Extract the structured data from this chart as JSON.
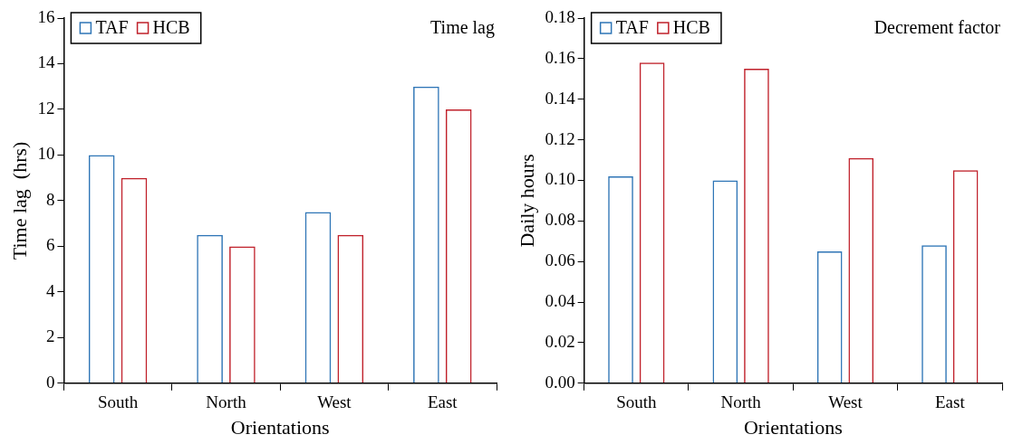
{
  "chart_data": [
    {
      "type": "bar",
      "title": "Time lag",
      "xlabel": "Orientations",
      "ylabel": "Time lag  (hrs)",
      "categories": [
        "South",
        "North",
        "West",
        "East"
      ],
      "series": [
        {
          "name": "TAF",
          "color": "#2e75b6",
          "values": [
            10,
            6.5,
            7.5,
            13
          ]
        },
        {
          "name": "HCB",
          "color": "#c0202a",
          "values": [
            9,
            6,
            6.5,
            12
          ]
        }
      ],
      "ylim": [
        0,
        16
      ],
      "yticks": [
        0,
        2,
        4,
        6,
        8,
        10,
        12,
        14,
        16
      ],
      "grid": false,
      "legend": "top left"
    },
    {
      "type": "bar",
      "title": "Decrement factor",
      "xlabel": "Orientations",
      "ylabel": "Daily hours",
      "categories": [
        "South",
        "North",
        "West",
        "East"
      ],
      "series": [
        {
          "name": "TAF",
          "color": "#2e75b6",
          "values": [
            0.102,
            0.1,
            0.065,
            0.068
          ]
        },
        {
          "name": "HCB",
          "color": "#c0202a",
          "values": [
            0.158,
            0.155,
            0.111,
            0.105
          ]
        }
      ],
      "ylim": [
        0,
        0.18
      ],
      "yticks": [
        {
          "value": 0,
          "label": "0.00"
        },
        {
          "value": 0.02,
          "label": "0.02"
        },
        {
          "value": 0.04,
          "label": "0.04"
        },
        {
          "value": 0.06,
          "label": "0.06"
        },
        {
          "value": 0.08,
          "label": "0.08"
        },
        {
          "value": 0.1,
          "label": "0.10"
        },
        {
          "value": 0.12,
          "label": "0.12"
        },
        {
          "value": 0.14,
          "label": "0.14"
        },
        {
          "value": 0.16,
          "label": "0.16"
        },
        {
          "value": 0.18,
          "label": "0.18"
        }
      ],
      "grid": false,
      "legend": "top left"
    }
  ]
}
